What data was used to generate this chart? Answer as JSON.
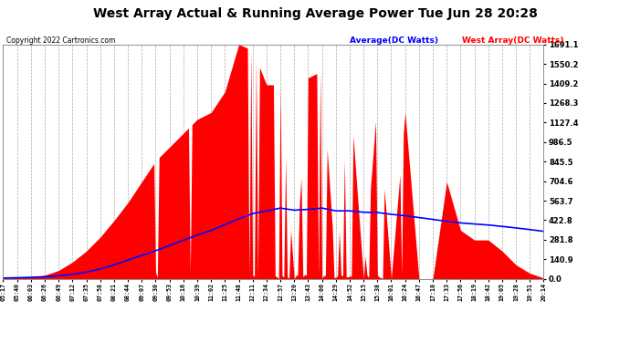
{
  "title": "West Array Actual & Running Average Power Tue Jun 28 20:28",
  "copyright": "Copyright 2022 Cartronics.com",
  "legend_avg": "Average(DC Watts)",
  "legend_west": "West Array(DC Watts)",
  "plot_bg_color": "#ffffff",
  "fig_bg_color": "#ffffff",
  "grid_color": "#aaaaaa",
  "ymin": 0.0,
  "ymax": 1691.1,
  "yticks": [
    0.0,
    140.9,
    281.8,
    422.8,
    563.7,
    704.6,
    845.5,
    986.5,
    1127.4,
    1268.3,
    1409.2,
    1550.2,
    1691.1
  ],
  "xtick_labels": [
    "05:17",
    "05:40",
    "06:03",
    "06:26",
    "06:49",
    "07:12",
    "07:35",
    "07:58",
    "08:21",
    "08:44",
    "09:07",
    "09:30",
    "09:53",
    "10:16",
    "10:39",
    "11:02",
    "11:25",
    "11:48",
    "12:11",
    "12:34",
    "12:57",
    "13:20",
    "13:43",
    "14:06",
    "14:29",
    "14:52",
    "15:15",
    "15:38",
    "16:01",
    "16:24",
    "16:47",
    "17:10",
    "17:33",
    "17:56",
    "18:19",
    "18:42",
    "19:05",
    "19:28",
    "19:51",
    "20:14"
  ],
  "west_color": "#ff0000",
  "avg_color": "#0000ff",
  "west_data": [
    5,
    8,
    12,
    25,
    60,
    120,
    200,
    300,
    420,
    550,
    700,
    850,
    950,
    1050,
    1150,
    1200,
    1350,
    1691,
    1650,
    1400,
    1400,
    0,
    1450,
    1500,
    0,
    1380,
    0,
    1300,
    0,
    1200,
    0,
    0,
    700,
    350,
    280,
    280,
    200,
    100,
    40,
    5
  ],
  "avg_data": [
    5,
    7,
    10,
    14,
    21,
    32,
    48,
    70,
    100,
    135,
    168,
    202,
    240,
    278,
    315,
    348,
    390,
    433,
    470,
    490,
    510,
    495,
    500,
    510,
    490,
    490,
    480,
    478,
    465,
    455,
    442,
    428,
    415,
    403,
    395,
    388,
    378,
    367,
    355,
    342
  ]
}
